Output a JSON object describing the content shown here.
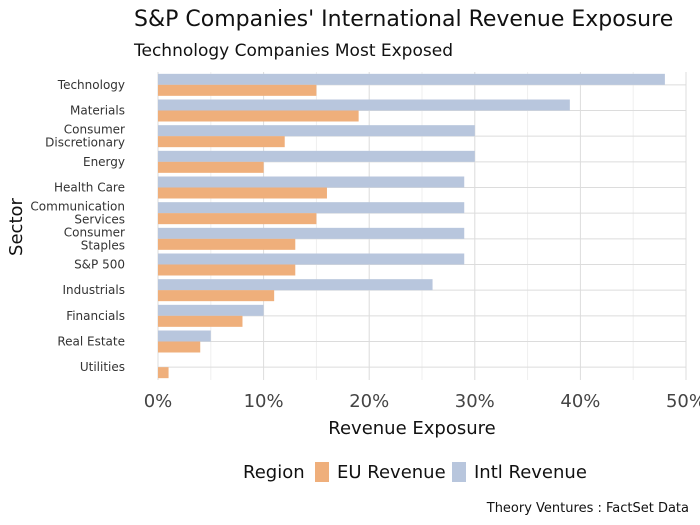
{
  "chart_data": {
    "type": "bar",
    "orientation": "horizontal",
    "title": "S&P Companies' International Revenue Exposure",
    "subtitle": "Technology Companies Most Exposed",
    "xlabel": "Revenue Exposure",
    "ylabel": "Sector",
    "xlim": [
      0,
      50
    ],
    "x_ticks": [
      0,
      10,
      20,
      30,
      40,
      50
    ],
    "x_tick_labels": [
      "0%",
      "10%",
      "20%",
      "30%",
      "40%",
      "50%"
    ],
    "grid": true,
    "categories": [
      [
        "Technology"
      ],
      [
        "Materials"
      ],
      [
        "Consumer",
        "Discretionary"
      ],
      [
        "Energy"
      ],
      [
        "Health Care"
      ],
      [
        "Communication",
        "Services"
      ],
      [
        "Consumer",
        "Staples"
      ],
      [
        "S&P 500"
      ],
      [
        "Industrials"
      ],
      [
        "Financials"
      ],
      [
        "Real Estate"
      ],
      [
        "Utilities"
      ]
    ],
    "series": [
      {
        "name": "Intl Revenue",
        "color": "#b8c6dd",
        "values": [
          48,
          39,
          30,
          30,
          29,
          29,
          29,
          29,
          26,
          10,
          5,
          0
        ]
      },
      {
        "name": "EU Revenue",
        "color": "#efaf7b",
        "values": [
          15,
          19,
          12,
          10,
          16,
          15,
          13,
          13,
          11,
          8,
          4,
          1
        ]
      }
    ],
    "legend": {
      "title": "Region",
      "placement": "bottom",
      "entries": [
        {
          "label": "EU Revenue",
          "color": "#efaf7b"
        },
        {
          "label": "Intl Revenue",
          "color": "#b8c6dd"
        }
      ]
    },
    "caption": "Theory Ventures : FactSet Data"
  }
}
